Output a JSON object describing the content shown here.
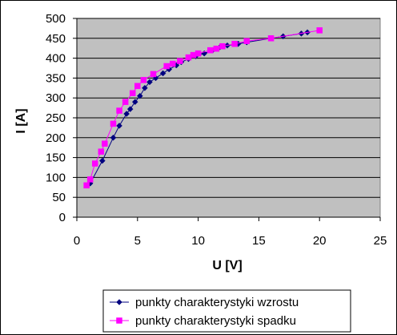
{
  "chart_data": {
    "type": "scatter",
    "title": "",
    "xlabel": "U [V]",
    "ylabel": "I [A]",
    "xlim": [
      0,
      25
    ],
    "ylim": [
      0,
      500
    ],
    "x_ticks": [
      0,
      5,
      10,
      15,
      20,
      25
    ],
    "y_ticks": [
      0,
      50,
      100,
      150,
      200,
      250,
      300,
      350,
      400,
      450,
      500
    ],
    "grid": "horizontal",
    "plot_background": "#c0c0c0",
    "legend_position": "bottom-right",
    "series": [
      {
        "name": "punkty charakterystyki wzrostu",
        "color": "#000080",
        "marker": "diamond",
        "points": [
          [
            1.1,
            85
          ],
          [
            2.1,
            142
          ],
          [
            3.0,
            200
          ],
          [
            3.5,
            230
          ],
          [
            4.1,
            260
          ],
          [
            4.4,
            272
          ],
          [
            4.8,
            290
          ],
          [
            5.2,
            305
          ],
          [
            5.6,
            325
          ],
          [
            6.0,
            340
          ],
          [
            6.5,
            350
          ],
          [
            7.1,
            362
          ],
          [
            7.6,
            372
          ],
          [
            8.2,
            382
          ],
          [
            8.6,
            390
          ],
          [
            9.2,
            398
          ],
          [
            9.8,
            405
          ],
          [
            10.5,
            412
          ],
          [
            11.2,
            420
          ],
          [
            11.8,
            428
          ],
          [
            12.4,
            432
          ],
          [
            13.3,
            436
          ],
          [
            14.0,
            440
          ],
          [
            17.0,
            455
          ],
          [
            18.5,
            462
          ],
          [
            19.0,
            465
          ]
        ]
      },
      {
        "name": "punkty charakterystyki spadku",
        "color": "#ff00ff",
        "marker": "square",
        "points": [
          [
            0.8,
            80
          ],
          [
            1.1,
            95
          ],
          [
            1.5,
            135
          ],
          [
            2.0,
            165
          ],
          [
            2.3,
            185
          ],
          [
            3.0,
            235
          ],
          [
            3.5,
            268
          ],
          [
            4.0,
            290
          ],
          [
            4.6,
            312
          ],
          [
            5.0,
            330
          ],
          [
            5.5,
            345
          ],
          [
            6.3,
            360
          ],
          [
            7.4,
            380
          ],
          [
            7.9,
            386
          ],
          [
            8.5,
            393
          ],
          [
            9.2,
            402
          ],
          [
            9.6,
            408
          ],
          [
            10.0,
            412
          ],
          [
            11.0,
            420
          ],
          [
            11.5,
            424
          ],
          [
            12.0,
            430
          ],
          [
            13.0,
            436
          ],
          [
            14.0,
            443
          ],
          [
            16.0,
            450
          ],
          [
            20.0,
            470
          ]
        ]
      }
    ]
  }
}
